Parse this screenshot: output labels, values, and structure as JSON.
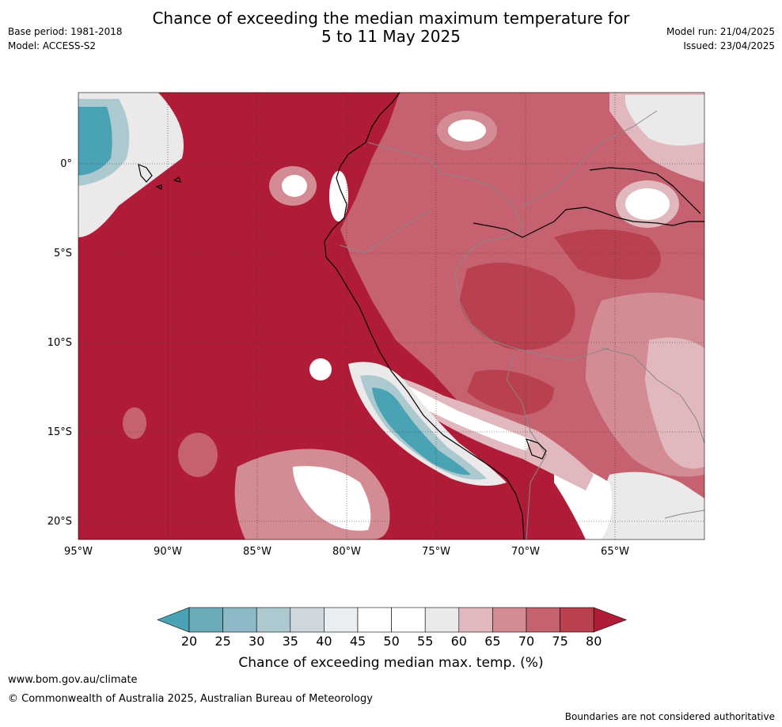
{
  "header": {
    "title_line1": "Chance of exceeding the median maximum temperature for",
    "title_line2": "5 to 11 May 2025",
    "base_period": "Base period: 1981-2018",
    "model": "Model: ACCESS-S2",
    "model_run": "Model run: 21/04/2025",
    "issued": "Issued: 23/04/2025"
  },
  "map": {
    "lat_labels": [
      "0°",
      "5°S",
      "10°S",
      "15°S",
      "20°S"
    ],
    "lon_labels": [
      "95°W",
      "90°W",
      "85°W",
      "80°W",
      "75°W",
      "70°W",
      "65°W"
    ]
  },
  "colorbar": {
    "ticks": [
      "20",
      "25",
      "30",
      "35",
      "40",
      "45",
      "50",
      "55",
      "60",
      "65",
      "70",
      "75",
      "80"
    ],
    "label": "Chance of exceeding median max. temp. (%)",
    "colors": [
      "#4aa3b5",
      "#6aabb9",
      "#8bbac6",
      "#adc9d0",
      "#ced8dc",
      "#e8eef1",
      "#ffffff",
      "#ffffff",
      "#ebe9ea",
      "#e1b8bd",
      "#d48c94",
      "#c66270",
      "#b9404f",
      "#b01c37"
    ]
  },
  "footer": {
    "website": "www.bom.gov.au/climate",
    "copyright": "© Commonwealth of Australia 2025, Australian Bureau of Meteorology",
    "disclaimer": "Boundaries are not considered authoritative"
  }
}
